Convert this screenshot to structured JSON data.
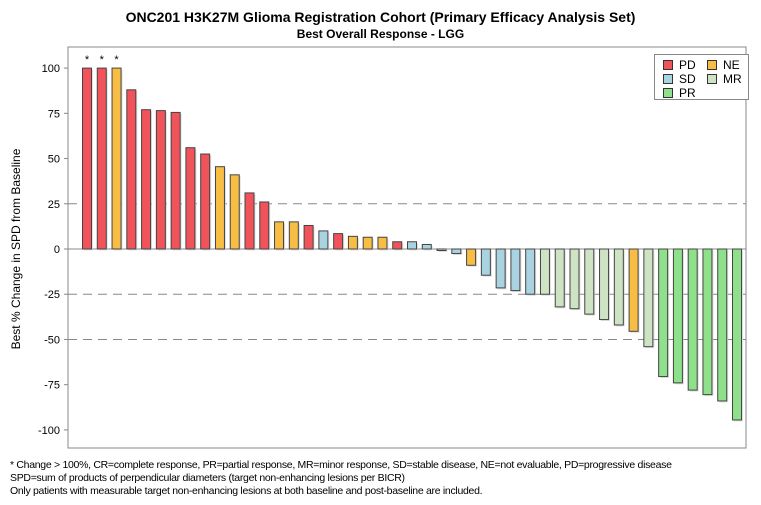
{
  "title": "ONC201 H3K27M Glioma Registration Cohort (Primary Efficacy Analysis Set)",
  "subtitle": "Best Overall Response - LGG",
  "footnotes": [
    "* Change > 100%, CR=complete response, PR=partial response, MR=minor response, SD=stable disease, NE=not evaluable, PD=progressive disease",
    "SPD=sum of products of perpendicular diameters (target non-enhancing lesions per BICR)",
    "Only patients with measurable target non-enhancing lesions at both baseline and post-baseline are included."
  ],
  "legend": [
    {
      "label": "PD",
      "color": "#f0545a"
    },
    {
      "label": "NE",
      "color": "#f7bd45"
    },
    {
      "label": "SD",
      "color": "#a9d3e0"
    },
    {
      "label": "MR",
      "color": "#cde3c4"
    },
    {
      "label": "PR",
      "color": "#8ee08a"
    }
  ],
  "chart_data": {
    "type": "bar",
    "title": "ONC201 H3K27M Glioma Registration Cohort (Primary Efficacy Analysis Set)",
    "subtitle": "Best Overall Response - LGG",
    "xlabel": "",
    "ylabel": "Best % Change in SPD from Baseline",
    "ylim": [
      -110,
      110
    ],
    "yticks": [
      100,
      75,
      50,
      25,
      0,
      -25,
      -50,
      -75,
      -100
    ],
    "ytick_labels": [
      "100",
      "75",
      "50",
      "25",
      "0",
      "-25",
      "-50",
      "-75",
      "-100"
    ],
    "dashed_gridlines": [
      25,
      -25,
      -50
    ],
    "legend_position": "top-right",
    "annotation": "*",
    "values": [
      100,
      100,
      100,
      88,
      77,
      76.5,
      75.5,
      56,
      52.5,
      45.5,
      41,
      31,
      26,
      15,
      15,
      13,
      10,
      8.5,
      7,
      6.5,
      6.5,
      4,
      4,
      2.5,
      -0.5,
      -2.5,
      -9,
      -14.5,
      -21.5,
      -23,
      -25,
      -25,
      -32,
      -33,
      -36,
      -39,
      -42,
      -45.5,
      -54,
      -70.5,
      -74,
      -78,
      -80.5,
      -84,
      -94.5
    ],
    "response": [
      "PD",
      "PD",
      "NE",
      "PD",
      "PD",
      "PD",
      "PD",
      "PD",
      "PD",
      "NE",
      "NE",
      "PD",
      "PD",
      "NE",
      "NE",
      "PD",
      "SD",
      "PD",
      "NE",
      "NE",
      "NE",
      "PD",
      "SD",
      "SD",
      "MR",
      "SD",
      "NE",
      "SD",
      "SD",
      "SD",
      "SD",
      "MR",
      "MR",
      "MR",
      "MR",
      "MR",
      "MR",
      "NE",
      "MR",
      "PR",
      "PR",
      "PR",
      "PR",
      "PR",
      "PR"
    ],
    "capped_over_100": [
      true,
      true,
      true,
      false,
      false,
      false,
      false,
      false,
      false,
      false,
      false,
      false,
      false,
      false,
      false,
      false,
      false,
      false,
      false,
      false,
      false,
      false,
      false,
      false,
      false,
      false,
      false,
      false,
      false,
      false,
      false,
      false,
      false,
      false,
      false,
      false,
      false,
      false,
      false,
      false,
      false,
      false,
      false,
      false,
      false
    ]
  }
}
